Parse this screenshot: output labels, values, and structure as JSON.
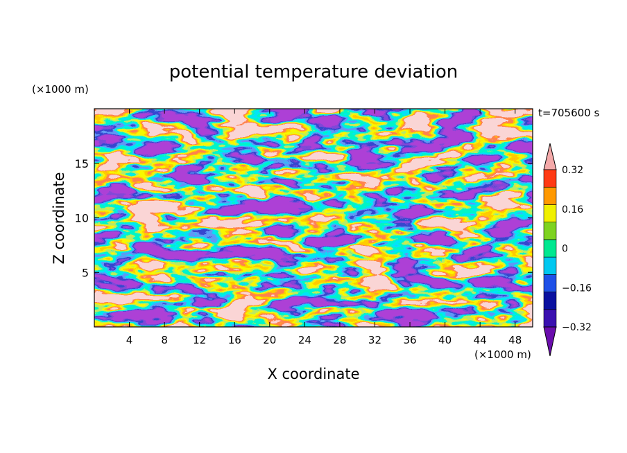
{
  "chart_data": {
    "type": "heatmap",
    "title": "potential temperature deviation",
    "xlabel": "X coordinate",
    "ylabel": "Z coordinate",
    "x_unit": "(×1000 m)",
    "y_unit": "(×1000 m)",
    "time_label": "t=705600 s",
    "xlim": [
      0,
      50
    ],
    "ylim": [
      0,
      20
    ],
    "x_ticks": [
      4,
      8,
      12,
      16,
      20,
      24,
      28,
      32,
      36,
      40,
      44,
      48
    ],
    "y_ticks": [
      5,
      10,
      15
    ],
    "colorbar": {
      "levels": [
        -0.4,
        -0.32,
        -0.24,
        -0.16,
        -0.08,
        0,
        0.08,
        0.16,
        0.24,
        0.32,
        0.4
      ],
      "tick_values": [
        0.32,
        0.16,
        0,
        -0.16,
        -0.32
      ],
      "tick_labels": [
        "0.32",
        "0.16",
        "0",
        "−0.16",
        "−0.32"
      ],
      "colors_low_to_high": [
        "#6a0dad",
        "#3a10b0",
        "#0a10a0",
        "#1e50e8",
        "#00c8f0",
        "#00e890",
        "#7ed321",
        "#f0f000",
        "#ff9900",
        "#ff3a14",
        "#f4a9a9"
      ],
      "extends": "both"
    },
    "grid": false
  }
}
